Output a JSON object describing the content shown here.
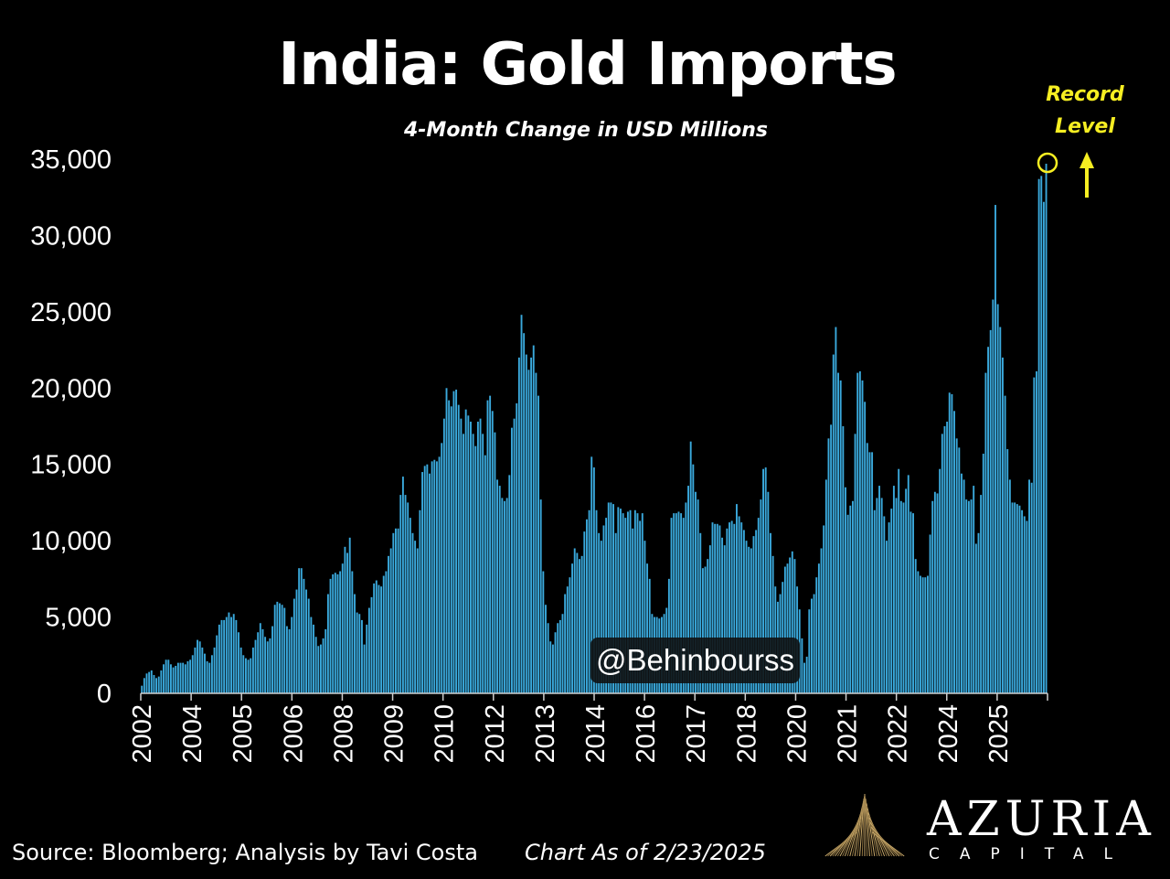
{
  "header": {
    "title": "India: Gold Imports",
    "subtitle": "4-Month Change in USD Millions"
  },
  "annotation": {
    "line1": "Record",
    "line2": "Level",
    "color": "#f6ee22"
  },
  "watermark": {
    "text": "@Behinbourss"
  },
  "footer": {
    "source": "Source: Bloomberg; Analysis by Tavi Costa",
    "as_of": "Chart As of 2/23/2025"
  },
  "logo": {
    "name": "AZURIA",
    "sub": "CAPITAL"
  },
  "colors": {
    "background": "#000000",
    "bar": "#3aa9dc",
    "text": "#ffffff",
    "accent": "#f6ee22"
  },
  "chart_data": {
    "type": "bar",
    "title": "India: Gold Imports",
    "subtitle": "4-Month Change in USD Millions",
    "ylim": [
      0,
      35000
    ],
    "yticks": [
      0,
      5000,
      10000,
      15000,
      20000,
      25000,
      30000,
      35000
    ],
    "ytick_labels": [
      "0",
      "5,000",
      "10,000",
      "15,000",
      "20,000",
      "25,000",
      "30,000",
      "35,000"
    ],
    "xtick_labels": [
      "2002",
      "2004",
      "2005",
      "2006",
      "2008",
      "2009",
      "2010",
      "2012",
      "2013",
      "2014",
      "2016",
      "2017",
      "2018",
      "2020",
      "2021",
      "2022",
      "2024",
      "2025"
    ],
    "grid": false,
    "legend": "none",
    "values": [
      500,
      1000,
      1300,
      1400,
      1500,
      1200,
      1000,
      1100,
      1500,
      1900,
      2200,
      2200,
      1900,
      1700,
      1800,
      2000,
      2000,
      2000,
      1900,
      2100,
      2200,
      2500,
      3000,
      3500,
      3400,
      3000,
      2600,
      2100,
      2000,
      2500,
      3000,
      3800,
      4500,
      4800,
      4800,
      5000,
      5300,
      5000,
      5200,
      4800,
      4000,
      3000,
      2500,
      2300,
      2200,
      2300,
      3000,
      3500,
      4000,
      4600,
      4200,
      3700,
      3400,
      3600,
      4400,
      5800,
      6000,
      5900,
      5800,
      5600,
      4400,
      4200,
      5000,
      6200,
      6800,
      8200,
      8200,
      7500,
      6800,
      6200,
      5000,
      4500,
      3700,
      3100,
      3200,
      3600,
      4200,
      6500,
      7500,
      7800,
      7900,
      7800,
      8000,
      8500,
      9600,
      9200,
      10200,
      8000,
      6500,
      5300,
      5200,
      4800,
      3200,
      4500,
      5600,
      6300,
      7200,
      7400,
      7100,
      7000,
      7700,
      8000,
      9000,
      9500,
      10500,
      10800,
      10800,
      13000,
      14200,
      13000,
      12500,
      11500,
      10500,
      10000,
      9500,
      12000,
      14500,
      14900,
      15000,
      14400,
      15200,
      15300,
      15200,
      15500,
      16400,
      18000,
      20000,
      19200,
      18800,
      19800,
      19900,
      18900,
      18000,
      17000,
      18600,
      18200,
      17800,
      17000,
      16200,
      17800,
      18000,
      17000,
      15600,
      19200,
      19500,
      18500,
      17100,
      14000,
      13600,
      12800,
      12600,
      12800,
      14300,
      17400,
      18000,
      19000,
      22000,
      24800,
      23600,
      22200,
      21200,
      22000,
      22800,
      21000,
      19500,
      12700,
      8000,
      5800,
      4600,
      3400,
      3200,
      4000,
      4600,
      4800,
      5200,
      6500,
      7000,
      7600,
      8500,
      9500,
      9200,
      8800,
      9000,
      10600,
      11400,
      12000,
      15500,
      14800,
      12000,
      10500,
      10000,
      11000,
      11500,
      12500,
      12500,
      12400,
      10500,
      12200,
      12100,
      11800,
      11500,
      11900,
      12000,
      10800,
      12000,
      11800,
      11300,
      11800,
      10000,
      8500,
      7500,
      5200,
      5000,
      5000,
      4900,
      5000,
      5200,
      5600,
      7500,
      11500,
      11800,
      11800,
      11900,
      11800,
      11500,
      12500,
      13600,
      16500,
      15000,
      13200,
      12700,
      10500,
      8200,
      8300,
      8800,
      9700,
      11200,
      11100,
      11100,
      11000,
      10200,
      9700,
      10800,
      11200,
      11300,
      11100,
      12400,
      11600,
      11200,
      10700,
      10000,
      9600,
      9500,
      10300,
      10700,
      11500,
      12700,
      14700,
      14800,
      13200,
      10500,
      9000,
      7000,
      6000,
      6500,
      7300,
      8300,
      8500,
      8900,
      9300,
      8800,
      7000,
      5500,
      3600,
      2000,
      2400,
      5500,
      6200,
      6500,
      7600,
      8500,
      9500,
      11000,
      14000,
      16700,
      17600,
      22200,
      24000,
      21000,
      20500,
      17500,
      13500,
      11700,
      12300,
      12600,
      17000,
      21000,
      21100,
      20500,
      19100,
      16400,
      15800,
      15800,
      12000,
      12800,
      13600,
      12800,
      11600,
      10000,
      11200,
      12100,
      13600,
      12800,
      14700,
      12600,
      12500,
      13400,
      14300,
      11900,
      11800,
      8800,
      8000,
      7700,
      7600,
      7600,
      7700,
      10400,
      12600,
      13200,
      13100,
      14700,
      17000,
      17500,
      17800,
      19700,
      19600,
      18500,
      16700,
      16100,
      14400,
      14000,
      12700,
      12600,
      12700,
      13600,
      9800,
      10500,
      13000,
      15700,
      21000,
      22700,
      23800,
      25800,
      32000,
      25500,
      24000,
      22000,
      19500,
      16000,
      14000,
      12500,
      12500,
      12400,
      12300,
      12000,
      11600,
      11300,
      14000,
      13800,
      20700,
      21100,
      33700,
      33900,
      32200,
      34700
    ]
  }
}
